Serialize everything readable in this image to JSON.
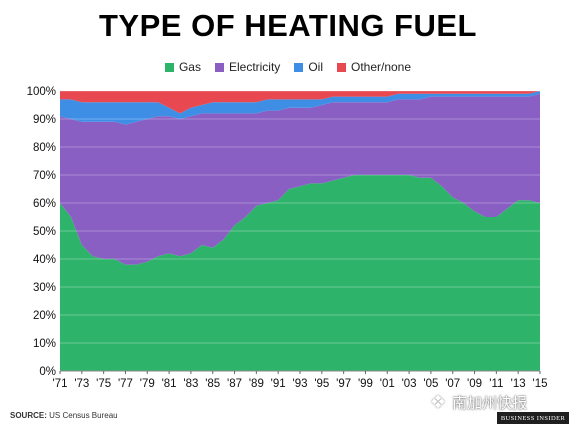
{
  "chart_data": {
    "type": "area",
    "title": "TYPE OF HEATING FUEL",
    "stacked": true,
    "percent_axis": true,
    "ylim": [
      0,
      100
    ],
    "y_ticks": [
      "0%",
      "10%",
      "20%",
      "30%",
      "40%",
      "50%",
      "60%",
      "70%",
      "80%",
      "90%",
      "100%"
    ],
    "x_ticks": [
      "'71",
      "'73",
      "'75",
      "'77",
      "'79",
      "'81",
      "'83",
      "'85",
      "'87",
      "'89",
      "'91",
      "'93",
      "'95",
      "'97",
      "'99",
      "'01",
      "'03",
      "'05",
      "'07",
      "'09",
      "'11",
      "'13",
      "'15"
    ],
    "x": [
      1971,
      1972,
      1973,
      1974,
      1975,
      1976,
      1977,
      1978,
      1979,
      1980,
      1981,
      1982,
      1983,
      1984,
      1985,
      1986,
      1987,
      1988,
      1989,
      1990,
      1991,
      1992,
      1993,
      1994,
      1995,
      1996,
      1997,
      1998,
      1999,
      2000,
      2001,
      2002,
      2003,
      2004,
      2005,
      2006,
      2007,
      2008,
      2009,
      2010,
      2011,
      2012,
      2013,
      2014,
      2015
    ],
    "legend_position": "top",
    "series": [
      {
        "name": "Gas",
        "color": "#2eb36b",
        "values": [
          60,
          55,
          45,
          41,
          40,
          40,
          38,
          38,
          39,
          41,
          42,
          41,
          42,
          45,
          44,
          47,
          52,
          55,
          59,
          60,
          61,
          65,
          66,
          67,
          67,
          68,
          69,
          70,
          70,
          70,
          70,
          70,
          70,
          69,
          69,
          66,
          62,
          60,
          57,
          55,
          55,
          58,
          61,
          61,
          60
        ]
      },
      {
        "name": "Electricity",
        "color": "#8a5fc4",
        "values": [
          31,
          35,
          44,
          48,
          49,
          49,
          50,
          51,
          51,
          50,
          49,
          49,
          49,
          47,
          48,
          45,
          40,
          37,
          33,
          33,
          32,
          29,
          28,
          27,
          28,
          28,
          27,
          26,
          26,
          26,
          26,
          27,
          27,
          28,
          29,
          32,
          36,
          38,
          41,
          43,
          43,
          40,
          37,
          37,
          39
        ]
      },
      {
        "name": "Oil",
        "color": "#3e8ee6",
        "values": [
          6,
          7,
          7,
          7,
          7,
          7,
          8,
          7,
          6,
          5,
          3,
          2,
          3,
          3,
          4,
          4,
          4,
          4,
          4,
          4,
          4,
          3,
          3,
          3,
          2,
          2,
          2,
          2,
          2,
          2,
          2,
          2,
          2,
          2,
          1,
          1,
          1,
          1,
          1,
          1,
          1,
          1,
          1,
          1,
          1
        ]
      },
      {
        "name": "Other/none",
        "color": "#e8484f",
        "values": [
          3,
          3,
          4,
          4,
          4,
          4,
          4,
          4,
          4,
          4,
          6,
          8,
          6,
          5,
          4,
          4,
          4,
          4,
          4,
          3,
          3,
          3,
          3,
          3,
          3,
          2,
          2,
          2,
          2,
          2,
          2,
          1,
          1,
          1,
          1,
          1,
          1,
          1,
          1,
          1,
          1,
          1,
          1,
          1,
          0
        ]
      }
    ]
  },
  "footer": {
    "source_label": "SOURCE:",
    "source_text": "US Census Bureau",
    "logo_text": "BUSINESS INSIDER",
    "watermark_text": "南加州快报"
  }
}
